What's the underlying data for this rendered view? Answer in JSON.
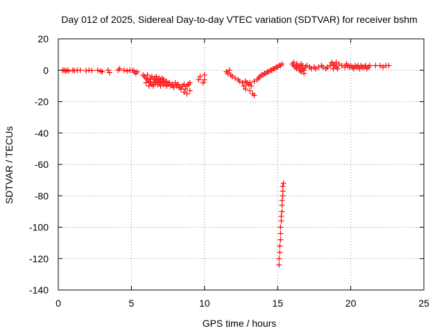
{
  "chart_data": {
    "type": "scatter",
    "title": "Day 012 of 2025, Sidereal Day-to-day VTEC variation (SDTVAR) for receiver bshm",
    "xlabel": "GPS time / hours",
    "ylabel": "SDTVAR / TECUs",
    "xlim": [
      0,
      25
    ],
    "ylim": [
      -140,
      20
    ],
    "xticks": [
      0,
      5,
      10,
      15,
      20,
      25
    ],
    "yticks": [
      20,
      0,
      -20,
      -40,
      -60,
      -80,
      -100,
      -120,
      -140
    ],
    "xtick_labels": [
      "0",
      "5",
      "10",
      "15",
      "20",
      "25"
    ],
    "ytick_labels": [
      "20",
      "0",
      "-20",
      "-40",
      "-60",
      "-80",
      "-100",
      "-120",
      "-140"
    ],
    "grid": true,
    "marker": "plus",
    "series": [
      {
        "name": "SDTVAR",
        "color": "#ff0000",
        "points": [
          [
            0.3,
            0
          ],
          [
            0.4,
            0
          ],
          [
            0.5,
            -0.5
          ],
          [
            0.6,
            0
          ],
          [
            0.7,
            -0.5
          ],
          [
            1.0,
            0
          ],
          [
            1.1,
            -0.3
          ],
          [
            1.3,
            0
          ],
          [
            1.5,
            0
          ],
          [
            1.9,
            -0.3
          ],
          [
            2.1,
            0
          ],
          [
            2.3,
            -0.2
          ],
          [
            2.7,
            0
          ],
          [
            2.9,
            -0.5
          ],
          [
            3.0,
            -1
          ],
          [
            3.4,
            0
          ],
          [
            3.5,
            -1.5
          ],
          [
            4.1,
            0
          ],
          [
            4.2,
            1
          ],
          [
            4.5,
            0
          ],
          [
            4.7,
            -0.5
          ],
          [
            4.9,
            0
          ],
          [
            5.1,
            0
          ],
          [
            5.2,
            -1
          ],
          [
            5.3,
            -2
          ],
          [
            5.4,
            -1
          ],
          [
            5.8,
            -3
          ],
          [
            5.9,
            -4
          ],
          [
            6.0,
            -5
          ],
          [
            6.0,
            -8
          ],
          [
            6.1,
            -6
          ],
          [
            6.1,
            -3
          ],
          [
            6.2,
            -7
          ],
          [
            6.2,
            -10
          ],
          [
            6.3,
            -5
          ],
          [
            6.3,
            -8
          ],
          [
            6.4,
            -9
          ],
          [
            6.4,
            -4
          ],
          [
            6.5,
            -6
          ],
          [
            6.5,
            -10
          ],
          [
            6.6,
            -5
          ],
          [
            6.6,
            -8
          ],
          [
            6.7,
            -4
          ],
          [
            6.7,
            -7
          ],
          [
            6.8,
            -6
          ],
          [
            6.8,
            -9
          ],
          [
            6.9,
            -5
          ],
          [
            6.9,
            -8
          ],
          [
            7.0,
            -6
          ],
          [
            7.0,
            -10
          ],
          [
            7.1,
            -7
          ],
          [
            7.1,
            -5
          ],
          [
            7.2,
            -9
          ],
          [
            7.2,
            -6
          ],
          [
            7.3,
            -8
          ],
          [
            7.4,
            -10
          ],
          [
            7.4,
            -7
          ],
          [
            7.5,
            -9
          ],
          [
            7.6,
            -8
          ],
          [
            7.7,
            -10
          ],
          [
            7.8,
            -9
          ],
          [
            7.9,
            -11
          ],
          [
            8.0,
            -8
          ],
          [
            8.1,
            -10
          ],
          [
            8.2,
            -9
          ],
          [
            8.3,
            -11
          ],
          [
            8.4,
            -12
          ],
          [
            8.5,
            -10
          ],
          [
            8.6,
            -9
          ],
          [
            8.6,
            -14
          ],
          [
            8.7,
            -12
          ],
          [
            8.8,
            -10
          ],
          [
            8.8,
            -15
          ],
          [
            8.9,
            -9
          ],
          [
            9.0,
            -13
          ],
          [
            9.0,
            -8
          ],
          [
            9.6,
            -6
          ],
          [
            9.7,
            -4
          ],
          [
            9.9,
            -8
          ],
          [
            10.0,
            -6
          ],
          [
            10.0,
            -3
          ],
          [
            11.5,
            -1
          ],
          [
            11.6,
            -2
          ],
          [
            11.7,
            0
          ],
          [
            11.8,
            -3
          ],
          [
            11.9,
            -4
          ],
          [
            12.1,
            -5
          ],
          [
            12.3,
            -6
          ],
          [
            12.4,
            -7
          ],
          [
            12.6,
            -8
          ],
          [
            12.7,
            -10
          ],
          [
            12.8,
            -12
          ],
          [
            12.8,
            -7
          ],
          [
            12.9,
            -8
          ],
          [
            13.0,
            -9
          ],
          [
            13.1,
            -13
          ],
          [
            13.1,
            -8
          ],
          [
            13.2,
            -10
          ],
          [
            13.3,
            -15
          ],
          [
            13.4,
            -16
          ],
          [
            13.4,
            -7
          ],
          [
            13.6,
            -6
          ],
          [
            13.7,
            -5
          ],
          [
            13.8,
            -4
          ],
          [
            13.9,
            -3
          ],
          [
            14.0,
            -3
          ],
          [
            14.1,
            -2
          ],
          [
            14.2,
            -2
          ],
          [
            14.3,
            -1
          ],
          [
            14.4,
            -1
          ],
          [
            14.5,
            0
          ],
          [
            14.6,
            0
          ],
          [
            14.7,
            1
          ],
          [
            14.8,
            1
          ],
          [
            14.9,
            2
          ],
          [
            15.0,
            2
          ],
          [
            15.1,
            3
          ],
          [
            15.2,
            3
          ],
          [
            15.3,
            4
          ],
          [
            15.1,
            -124
          ],
          [
            15.1,
            -120
          ],
          [
            15.15,
            -116
          ],
          [
            15.15,
            -112
          ],
          [
            15.2,
            -108
          ],
          [
            15.2,
            -104
          ],
          [
            15.2,
            -100
          ],
          [
            15.25,
            -96
          ],
          [
            15.25,
            -93
          ],
          [
            15.3,
            -90
          ],
          [
            15.3,
            -86
          ],
          [
            15.3,
            -83
          ],
          [
            15.35,
            -80
          ],
          [
            15.35,
            -77
          ],
          [
            15.35,
            -74
          ],
          [
            15.4,
            -72
          ],
          [
            16.0,
            4
          ],
          [
            16.1,
            3
          ],
          [
            16.1,
            5
          ],
          [
            16.2,
            2
          ],
          [
            16.3,
            4
          ],
          [
            16.3,
            1
          ],
          [
            16.4,
            3
          ],
          [
            16.5,
            0
          ],
          [
            16.5,
            2
          ],
          [
            16.6,
            -1
          ],
          [
            16.6,
            4
          ],
          [
            16.7,
            1
          ],
          [
            16.7,
            3
          ],
          [
            16.8,
            0
          ],
          [
            16.8,
            -2
          ],
          [
            16.9,
            2
          ],
          [
            17.0,
            3
          ],
          [
            17.2,
            2
          ],
          [
            17.3,
            1
          ],
          [
            17.5,
            2
          ],
          [
            17.6,
            1
          ],
          [
            17.8,
            2
          ],
          [
            18.0,
            3
          ],
          [
            18.1,
            2
          ],
          [
            18.3,
            1
          ],
          [
            18.4,
            2
          ],
          [
            18.6,
            3
          ],
          [
            18.7,
            5
          ],
          [
            18.8,
            4
          ],
          [
            18.8,
            1
          ],
          [
            18.9,
            3
          ],
          [
            19.0,
            2
          ],
          [
            19.0,
            5
          ],
          [
            19.1,
            1
          ],
          [
            19.2,
            4
          ],
          [
            19.4,
            3
          ],
          [
            19.6,
            2
          ],
          [
            19.7,
            4
          ],
          [
            19.8,
            3
          ],
          [
            19.9,
            2
          ],
          [
            20.0,
            3
          ],
          [
            20.1,
            2
          ],
          [
            20.2,
            1
          ],
          [
            20.3,
            3
          ],
          [
            20.4,
            2
          ],
          [
            20.5,
            3
          ],
          [
            20.6,
            1
          ],
          [
            20.7,
            3
          ],
          [
            20.8,
            2
          ],
          [
            20.9,
            2
          ],
          [
            21.0,
            3
          ],
          [
            21.1,
            1
          ],
          [
            21.2,
            2
          ],
          [
            21.3,
            3
          ],
          [
            21.7,
            3
          ],
          [
            22.0,
            3
          ],
          [
            22.2,
            2
          ],
          [
            22.4,
            3
          ],
          [
            22.6,
            3
          ]
        ]
      }
    ]
  }
}
